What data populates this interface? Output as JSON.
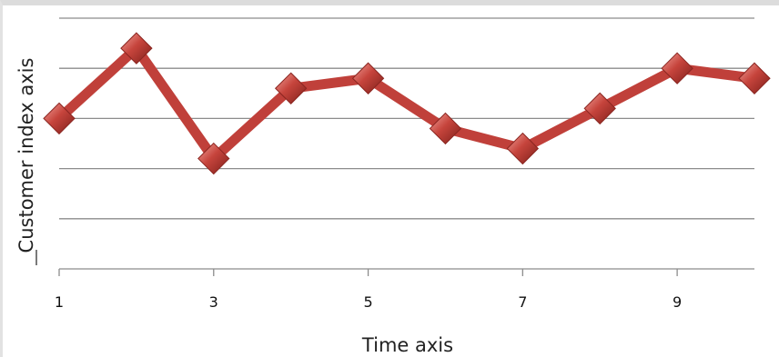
{
  "chart_data": {
    "type": "line",
    "title": "",
    "xlabel": "Time axis",
    "ylabel": "Customer index axis",
    "x": [
      1,
      2,
      3,
      4,
      5,
      6,
      7,
      8,
      9,
      10
    ],
    "x_tick_labels": [
      "1",
      "3",
      "5",
      "7",
      "9"
    ],
    "x_tick_values": [
      1,
      3,
      5,
      7,
      9
    ],
    "series": [
      {
        "values": [
          3.0,
          4.4,
          2.2,
          3.6,
          3.8,
          2.8,
          2.4,
          3.2,
          4.0,
          3.8
        ]
      }
    ],
    "ylim": [
      0,
      5
    ],
    "y_gridlines": [
      1,
      2,
      3,
      4,
      5
    ],
    "y_tick_labels_shown": false,
    "grid": true,
    "line_color": "#c0403a",
    "marker": "diamond",
    "marker_color": "#c0403a"
  }
}
